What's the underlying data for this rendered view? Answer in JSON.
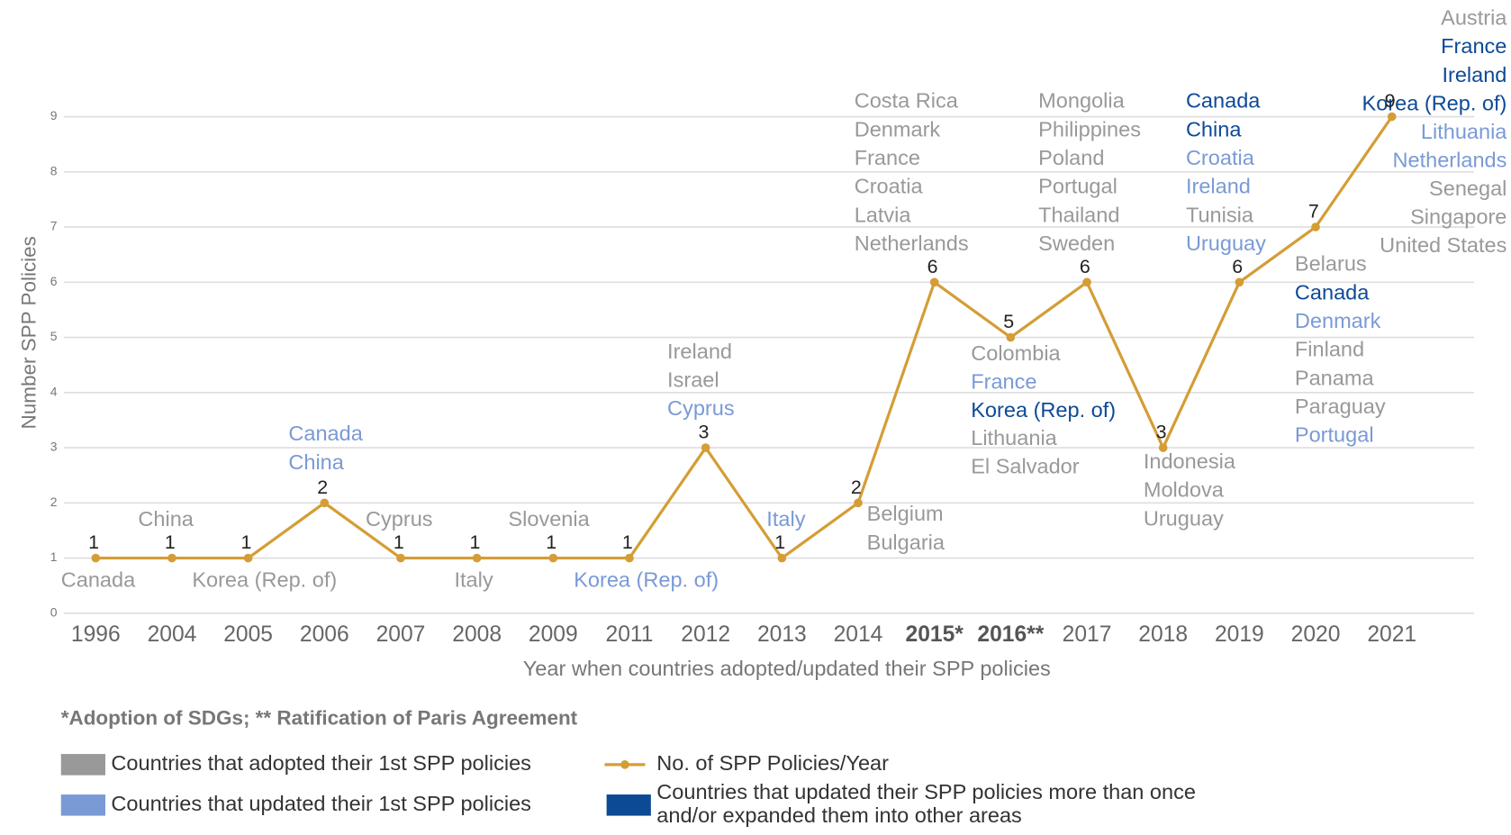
{
  "chart_data": {
    "type": "line",
    "y_label": "Number SPP Policies",
    "x_label": "Year when countries adopted/updated their SPP policies",
    "footnote": "*Adoption of SDGs; ** Ratification of Paris Agreement",
    "categories": [
      "1996",
      "2004",
      "2005",
      "2006",
      "2007",
      "2008",
      "2009",
      "2011",
      "2012",
      "2013",
      "2014",
      "2015*",
      "2016**",
      "2017",
      "2018",
      "2019",
      "2020",
      "2021"
    ],
    "series": [
      {
        "name": "No. of SPP Policies/Year",
        "color": "#d49d35",
        "values": [
          1,
          1,
          1,
          2,
          1,
          1,
          1,
          1,
          3,
          1,
          2,
          6,
          5,
          6,
          3,
          6,
          7,
          9
        ]
      }
    ],
    "ylim": [
      0,
      9
    ],
    "yticks": [
      0,
      1,
      2,
      3,
      4,
      5,
      6,
      7,
      8,
      9
    ],
    "grid": true,
    "legend": [
      {
        "lines": [
          "Countries that adopted their 1st SPP policies"
        ],
        "color": "#999999"
      },
      {
        "lines": [
          "Countries that updated their 1st SPP policies"
        ],
        "color": "#7a9ad6"
      },
      {
        "lines": [
          "Countries that updated their SPP policies more than once",
          "and/or expanded them into other areas"
        ],
        "color": "#0d4a96"
      }
    ],
    "annotations": [
      [
        {
          "name": "Canada",
          "color": "#999999"
        }
      ],
      [
        {
          "name": "China",
          "color": "#999999"
        }
      ],
      [
        {
          "name": "Korea (Rep. of)",
          "color": "#999999"
        }
      ],
      [
        {
          "name": "Canada",
          "color": "#7a9ad6"
        },
        {
          "name": "China",
          "color": "#7a9ad6"
        }
      ],
      [
        {
          "name": "Cyprus",
          "color": "#999999"
        }
      ],
      [
        {
          "name": "Italy",
          "color": "#999999"
        }
      ],
      [
        {
          "name": "Slovenia",
          "color": "#999999"
        }
      ],
      [
        {
          "name": "Korea (Rep. of)",
          "color": "#7a9ad6"
        }
      ],
      [
        {
          "name": "Ireland",
          "color": "#999999"
        },
        {
          "name": "Israel",
          "color": "#999999"
        },
        {
          "name": "Cyprus",
          "color": "#7a9ad6"
        }
      ],
      [
        {
          "name": "Italy",
          "color": "#7a9ad6"
        }
      ],
      [
        {
          "name": "Belgium",
          "color": "#999999"
        },
        {
          "name": "Bulgaria",
          "color": "#999999"
        }
      ],
      [
        {
          "name": "Costa Rica",
          "color": "#999999"
        },
        {
          "name": "Denmark",
          "color": "#999999"
        },
        {
          "name": "France",
          "color": "#999999"
        },
        {
          "name": "Croatia",
          "color": "#999999"
        },
        {
          "name": "Latvia",
          "color": "#999999"
        },
        {
          "name": "Netherlands",
          "color": "#999999"
        }
      ],
      [
        {
          "name": "Colombia",
          "color": "#999999"
        },
        {
          "name": "France",
          "color": "#7a9ad6"
        },
        {
          "name": "Korea (Rep. of)",
          "color": "#0d4a96"
        },
        {
          "name": "Lithuania",
          "color": "#999999"
        },
        {
          "name": "El Salvador",
          "color": "#999999"
        }
      ],
      [
        {
          "name": "Mongolia",
          "color": "#999999"
        },
        {
          "name": "Philippines",
          "color": "#999999"
        },
        {
          "name": "Poland",
          "color": "#999999"
        },
        {
          "name": "Portugal",
          "color": "#999999"
        },
        {
          "name": "Thailand",
          "color": "#999999"
        },
        {
          "name": "Sweden",
          "color": "#999999"
        }
      ],
      [
        {
          "name": "Indonesia",
          "color": "#999999"
        },
        {
          "name": "Moldova",
          "color": "#999999"
        },
        {
          "name": "Uruguay",
          "color": "#999999"
        }
      ],
      [
        {
          "name": "Canada",
          "color": "#0d4a96"
        },
        {
          "name": "China",
          "color": "#0d4a96"
        },
        {
          "name": "Croatia",
          "color": "#7a9ad6"
        },
        {
          "name": "Ireland",
          "color": "#7a9ad6"
        },
        {
          "name": "Tunisia",
          "color": "#999999"
        },
        {
          "name": "Uruguay",
          "color": "#7a9ad6"
        }
      ],
      [
        {
          "name": "Belarus",
          "color": "#999999"
        },
        {
          "name": "Canada",
          "color": "#0d4a96"
        },
        {
          "name": "Denmark",
          "color": "#7a9ad6"
        },
        {
          "name": "Finland",
          "color": "#999999"
        },
        {
          "name": "Panama",
          "color": "#999999"
        },
        {
          "name": "Paraguay",
          "color": "#999999"
        },
        {
          "name": "Portugal",
          "color": "#7a9ad6"
        }
      ],
      [
        {
          "name": "Austria",
          "color": "#999999"
        },
        {
          "name": "France",
          "color": "#0d4a96"
        },
        {
          "name": "Ireland",
          "color": "#0d4a96"
        },
        {
          "name": "Korea (Rep. of)",
          "color": "#0d4a96"
        },
        {
          "name": "Lithuania",
          "color": "#7a9ad6"
        },
        {
          "name": "Netherlands",
          "color": "#7a9ad6"
        },
        {
          "name": "Senegal",
          "color": "#999999"
        },
        {
          "name": "Singapore",
          "color": "#999999"
        },
        {
          "name": "United States",
          "color": "#999999"
        }
      ]
    ]
  }
}
